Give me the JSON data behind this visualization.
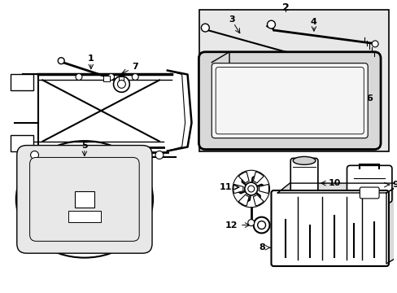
{
  "background_color": "#ffffff",
  "line_color": "#000000",
  "text_color": "#000000",
  "box2_fill": "#e8e8e8",
  "fig_width": 4.89,
  "fig_height": 3.6,
  "dpi": 100
}
